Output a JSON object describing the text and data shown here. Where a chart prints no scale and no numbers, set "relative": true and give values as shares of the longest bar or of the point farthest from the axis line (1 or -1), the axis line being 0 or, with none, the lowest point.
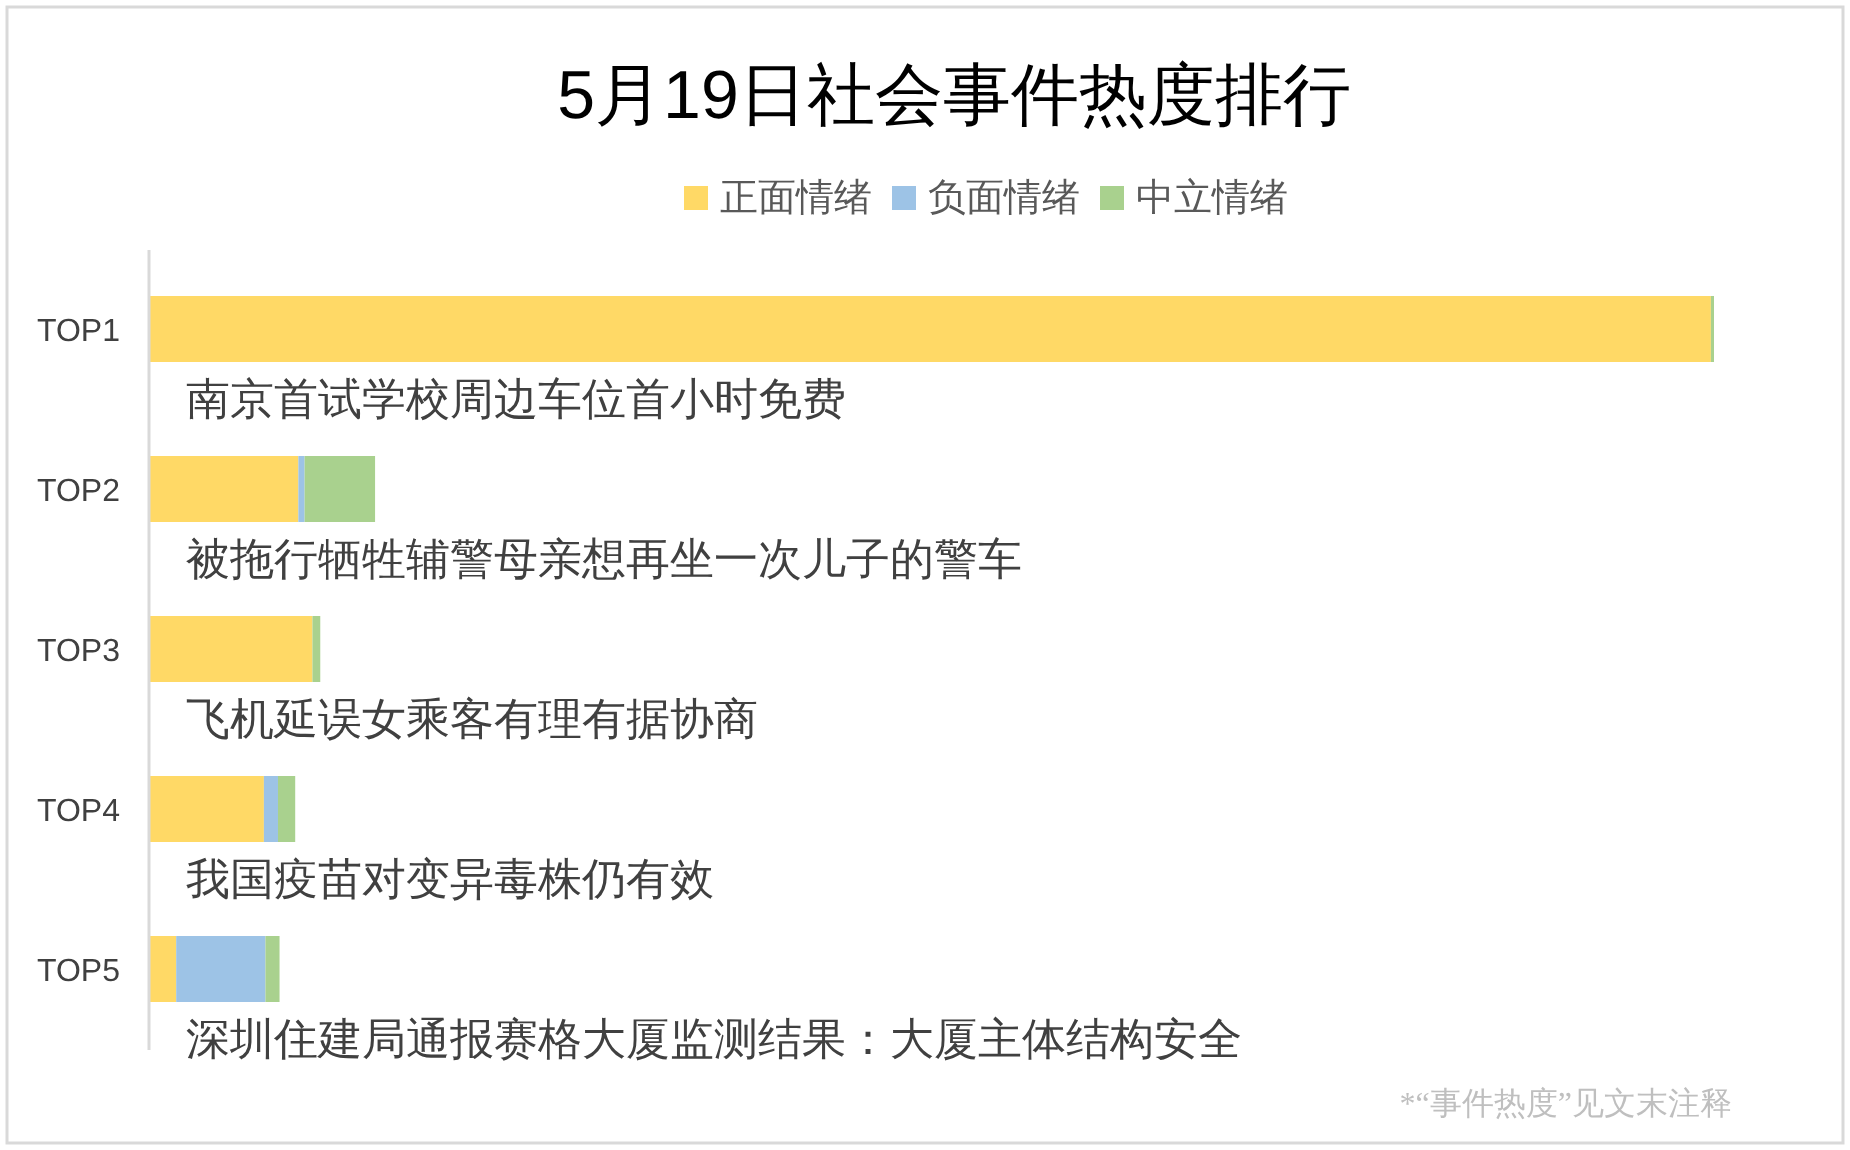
{
  "chart_data": {
    "type": "bar",
    "orientation": "horizontal",
    "stacked": true,
    "relative": true,
    "title": "5月19日社会事件热度排行",
    "categories": [
      "TOP1",
      "TOP2",
      "TOP3",
      "TOP4",
      "TOP5"
    ],
    "series": [
      {
        "name": "正面情绪",
        "color": "#ffd966",
        "values": [
          0.998,
          0.096,
          0.105,
          0.074,
          0.018
        ]
      },
      {
        "name": "负面情绪",
        "color": "#9dc3e6",
        "values": [
          0,
          0.004,
          0,
          0.009,
          0.057
        ]
      },
      {
        "name": "中立情绪",
        "color": "#a9d18e",
        "values": [
          0.002,
          0.045,
          0.005,
          0.011,
          0.009
        ]
      }
    ],
    "legend": "top",
    "annotations": [
      "南京首试学校周边车位首小时免费",
      "被拖行牺牲辅警母亲想再坐一次儿子的警车",
      "飞机延误女乘客有理有据协商",
      "我国疫苗对变异毒株仍有效",
      "深圳住建局通报赛格大厦监测结果：大厦主体结构安全",
      "*“事件热度”见文末注释"
    ]
  }
}
